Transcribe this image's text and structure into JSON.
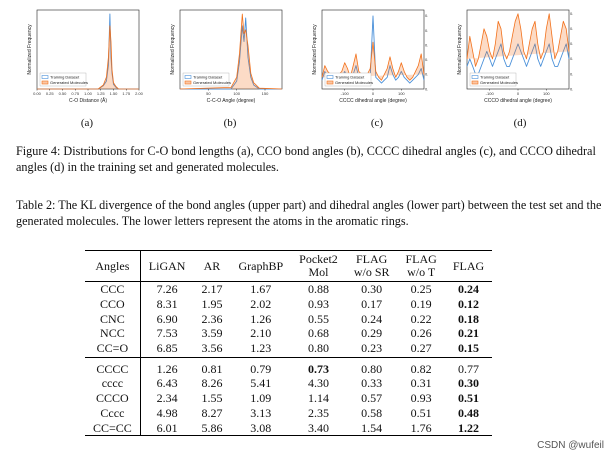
{
  "figure": {
    "caption": "Figure 4: Distributions for C-O bond lengths (a), CCO bond angles (b), CCCC dihedral angles (c), and CCCO dihedral angles (d) in the training set and generated molecules.",
    "subfigure_labels": [
      "(a)",
      "(b)",
      "(c)",
      "(d)"
    ]
  },
  "chart_data": [
    {
      "type": "line",
      "panel": "(a)",
      "xlabel": "C-O Distance (Å)",
      "ylabel": "Normalized Frequency",
      "xlim": [
        0.0,
        2.0
      ],
      "xticks": [
        "0.00",
        "0.25",
        "0.50",
        "0.75",
        "1.00",
        "1.25",
        "1.50",
        "1.75",
        "2.00"
      ],
      "ylim": [
        0,
        100
      ],
      "legend": [
        "Training Dataset",
        "Generated Molecules"
      ],
      "series": [
        {
          "name": "Training Dataset",
          "x": [
            0,
            1.2,
            1.3,
            1.36,
            1.4,
            1.43,
            1.45,
            1.47,
            1.5,
            1.55,
            1.6,
            2.0
          ],
          "values": [
            0,
            0,
            4,
            10,
            30,
            95,
            40,
            20,
            6,
            2,
            0,
            0
          ]
        },
        {
          "name": "Generated Molecules",
          "x": [
            0,
            1.2,
            1.3,
            1.36,
            1.4,
            1.43,
            1.45,
            1.47,
            1.5,
            1.55,
            1.6,
            2.0
          ],
          "values": [
            0,
            0,
            5,
            15,
            40,
            80,
            60,
            25,
            8,
            3,
            0,
            0
          ]
        }
      ]
    },
    {
      "type": "line",
      "panel": "(b)",
      "xlabel": "C-C-O Angle (degree)",
      "ylabel": "Normalized Frequency",
      "xlim": [
        0,
        180
      ],
      "xticks": [
        "50",
        "100",
        "150"
      ],
      "ylim": [
        0,
        100
      ],
      "legend": [
        "Training Dataset",
        "Generated Molecules"
      ],
      "series": [
        {
          "name": "Training Dataset",
          "x": [
            0,
            90,
            100,
            105,
            110,
            113,
            116,
            120,
            125,
            130,
            140,
            180
          ],
          "values": [
            0,
            0,
            10,
            35,
            80,
            60,
            90,
            40,
            15,
            5,
            0,
            0
          ]
        },
        {
          "name": "Generated Molecules",
          "x": [
            0,
            90,
            100,
            105,
            110,
            113,
            116,
            120,
            125,
            130,
            140,
            180
          ],
          "values": [
            0,
            2,
            15,
            45,
            95,
            70,
            75,
            55,
            20,
            8,
            1,
            0
          ]
        }
      ]
    },
    {
      "type": "line",
      "panel": "(c)",
      "xlabel": "CCCC dihedral angle (degree)",
      "ylabel": "Normalized Frequency",
      "xlim": [
        -180,
        180
      ],
      "xticks": [
        "-100",
        "0",
        "100"
      ],
      "yticks": [
        "0.000",
        "0.005",
        "0.010",
        "0.015",
        "0.020",
        "0.025"
      ],
      "ylim": [
        0,
        0.027
      ],
      "legend": [
        "Training Dataset",
        "Generated Molecules"
      ],
      "series": [
        {
          "name": "Training Dataset",
          "x": [
            -180,
            -170,
            -160,
            -150,
            -140,
            -130,
            -120,
            -110,
            -100,
            -90,
            -80,
            -70,
            -60,
            -50,
            -40,
            -30,
            -20,
            -10,
            0,
            10,
            20,
            30,
            40,
            50,
            60,
            70,
            80,
            90,
            100,
            110,
            120,
            130,
            140,
            150,
            160,
            170,
            180
          ],
          "values": [
            0.003,
            0.006,
            0.004,
            0.003,
            0.002,
            0.002,
            0.003,
            0.004,
            0.006,
            0.004,
            0.003,
            0.005,
            0.008,
            0.004,
            0.003,
            0.002,
            0.003,
            0.004,
            0.025,
            0.004,
            0.003,
            0.002,
            0.003,
            0.004,
            0.008,
            0.005,
            0.003,
            0.004,
            0.006,
            0.004,
            0.003,
            0.002,
            0.003,
            0.004,
            0.005,
            0.007,
            0.003
          ]
        },
        {
          "name": "Generated Molecules",
          "x": [
            -180,
            -170,
            -160,
            -150,
            -140,
            -130,
            -120,
            -110,
            -100,
            -90,
            -80,
            -70,
            -60,
            -50,
            -40,
            -30,
            -20,
            -10,
            0,
            10,
            20,
            30,
            40,
            50,
            60,
            70,
            80,
            90,
            100,
            110,
            120,
            130,
            140,
            150,
            160,
            170,
            180
          ],
          "values": [
            0.004,
            0.008,
            0.006,
            0.005,
            0.003,
            0.004,
            0.005,
            0.006,
            0.009,
            0.007,
            0.004,
            0.008,
            0.012,
            0.006,
            0.005,
            0.003,
            0.005,
            0.007,
            0.016,
            0.006,
            0.004,
            0.003,
            0.005,
            0.007,
            0.011,
            0.007,
            0.004,
            0.006,
            0.009,
            0.006,
            0.004,
            0.003,
            0.004,
            0.006,
            0.008,
            0.012,
            0.005
          ]
        }
      ]
    },
    {
      "type": "line",
      "panel": "(d)",
      "xlabel": "CCCO dihedral angle (degree)",
      "ylabel": "Normalized Frequency",
      "xlim": [
        -180,
        180
      ],
      "xticks": [
        "-100",
        "0",
        "100"
      ],
      "yticks": [
        "0.000",
        "0.002",
        "0.004",
        "0.006",
        "0.008",
        "0.010"
      ],
      "ylim": [
        0,
        0.0105
      ],
      "legend": [
        "Training Dataset",
        "Generated Molecules"
      ],
      "series": [
        {
          "name": "Training Dataset",
          "x": [
            -180,
            -170,
            -160,
            -150,
            -140,
            -130,
            -120,
            -110,
            -100,
            -90,
            -80,
            -70,
            -60,
            -50,
            -40,
            -30,
            -20,
            -10,
            0,
            10,
            20,
            30,
            40,
            50,
            60,
            70,
            80,
            90,
            100,
            110,
            120,
            130,
            140,
            150,
            160,
            170,
            180
          ],
          "values": [
            0.003,
            0.004,
            0.003,
            0.002,
            0.002,
            0.003,
            0.004,
            0.005,
            0.004,
            0.003,
            0.004,
            0.005,
            0.006,
            0.004,
            0.003,
            0.003,
            0.004,
            0.005,
            0.006,
            0.005,
            0.004,
            0.003,
            0.004,
            0.005,
            0.006,
            0.004,
            0.003,
            0.004,
            0.005,
            0.006,
            0.004,
            0.003,
            0.003,
            0.004,
            0.005,
            0.006,
            0.004
          ]
        },
        {
          "name": "Generated Molecules",
          "x": [
            -180,
            -170,
            -160,
            -150,
            -140,
            -130,
            -120,
            -110,
            -100,
            -90,
            -80,
            -70,
            -60,
            -50,
            -40,
            -30,
            -20,
            -10,
            0,
            10,
            20,
            30,
            40,
            50,
            60,
            70,
            80,
            90,
            100,
            110,
            120,
            130,
            140,
            150,
            160,
            170,
            180
          ],
          "values": [
            0.004,
            0.007,
            0.005,
            0.003,
            0.004,
            0.006,
            0.008,
            0.007,
            0.005,
            0.004,
            0.006,
            0.009,
            0.008,
            0.005,
            0.004,
            0.005,
            0.007,
            0.009,
            0.01,
            0.008,
            0.005,
            0.004,
            0.006,
            0.008,
            0.009,
            0.006,
            0.004,
            0.005,
            0.008,
            0.01,
            0.007,
            0.004,
            0.005,
            0.007,
            0.009,
            0.008,
            0.005
          ]
        }
      ]
    }
  ],
  "table": {
    "caption": "Table 2: The KL divergence of the bond angles (upper part) and dihedral angles (lower part) between the test set and the generated molecules. The lower letters represent the atoms in the aromatic rings.",
    "headers": [
      {
        "l1": "Angles",
        "l2": ""
      },
      {
        "l1": "LiGAN",
        "l2": ""
      },
      {
        "l1": "AR",
        "l2": ""
      },
      {
        "l1": "GraphBP",
        "l2": ""
      },
      {
        "l1": "Pocket2",
        "l2": "Mol"
      },
      {
        "l1": "FLAG",
        "l2": "w/o SR"
      },
      {
        "l1": "FLAG",
        "l2": "w/o T"
      },
      {
        "l1": "FLAG",
        "l2": ""
      }
    ],
    "rows": [
      {
        "angle": "CCC",
        "ligan": "7.26",
        "ar": "2.17",
        "graphbp": "1.67",
        "pocket2mol": "0.88",
        "flag_wo_sr": "0.30",
        "flag_wo_t": "0.25",
        "flag": "0.24"
      },
      {
        "angle": "CCO",
        "ligan": "8.31",
        "ar": "1.95",
        "graphbp": "2.02",
        "pocket2mol": "0.93",
        "flag_wo_sr": "0.17",
        "flag_wo_t": "0.19",
        "flag": "0.12"
      },
      {
        "angle": "CNC",
        "ligan": "6.90",
        "ar": "2.36",
        "graphbp": "1.26",
        "pocket2mol": "0.55",
        "flag_wo_sr": "0.24",
        "flag_wo_t": "0.22",
        "flag": "0.18"
      },
      {
        "angle": "NCC",
        "ligan": "7.53",
        "ar": "3.59",
        "graphbp": "2.10",
        "pocket2mol": "0.68",
        "flag_wo_sr": "0.29",
        "flag_wo_t": "0.26",
        "flag": "0.21"
      },
      {
        "angle": "CC=O",
        "ligan": "6.85",
        "ar": "3.56",
        "graphbp": "1.23",
        "pocket2mol": "0.80",
        "flag_wo_sr": "0.23",
        "flag_wo_t": "0.27",
        "flag": "0.15"
      },
      {
        "angle": "CCCC",
        "ligan": "1.26",
        "ar": "0.81",
        "graphbp": "0.79",
        "pocket2mol": "0.73",
        "flag_wo_sr": "0.80",
        "flag_wo_t": "0.82",
        "flag": "0.77"
      },
      {
        "angle": "cccc",
        "ligan": "6.43",
        "ar": "8.26",
        "graphbp": "5.41",
        "pocket2mol": "4.30",
        "flag_wo_sr": "0.33",
        "flag_wo_t": "0.31",
        "flag": "0.30"
      },
      {
        "angle": "CCCO",
        "ligan": "2.34",
        "ar": "1.55",
        "graphbp": "1.09",
        "pocket2mol": "1.14",
        "flag_wo_sr": "0.57",
        "flag_wo_t": "0.93",
        "flag": "0.51"
      },
      {
        "angle": "Cccc",
        "ligan": "4.98",
        "ar": "8.27",
        "graphbp": "3.13",
        "pocket2mol": "2.35",
        "flag_wo_sr": "0.58",
        "flag_wo_t": "0.51",
        "flag": "0.48"
      },
      {
        "angle": "CC=CC",
        "ligan": "6.01",
        "ar": "5.86",
        "graphbp": "3.08",
        "pocket2mol": "3.40",
        "flag_wo_sr": "1.54",
        "flag_wo_t": "1.76",
        "flag": "1.22"
      }
    ],
    "bold_cells": {
      "0": "flag",
      "1": "flag",
      "2": "flag",
      "3": "flag",
      "4": "flag",
      "5": "pocket2mol",
      "6": "flag",
      "7": "flag",
      "8": "flag",
      "9": "flag"
    }
  },
  "watermark": "CSDN @wufeil",
  "colors": {
    "training": "#4a90d9",
    "generated": "#f2711c"
  }
}
